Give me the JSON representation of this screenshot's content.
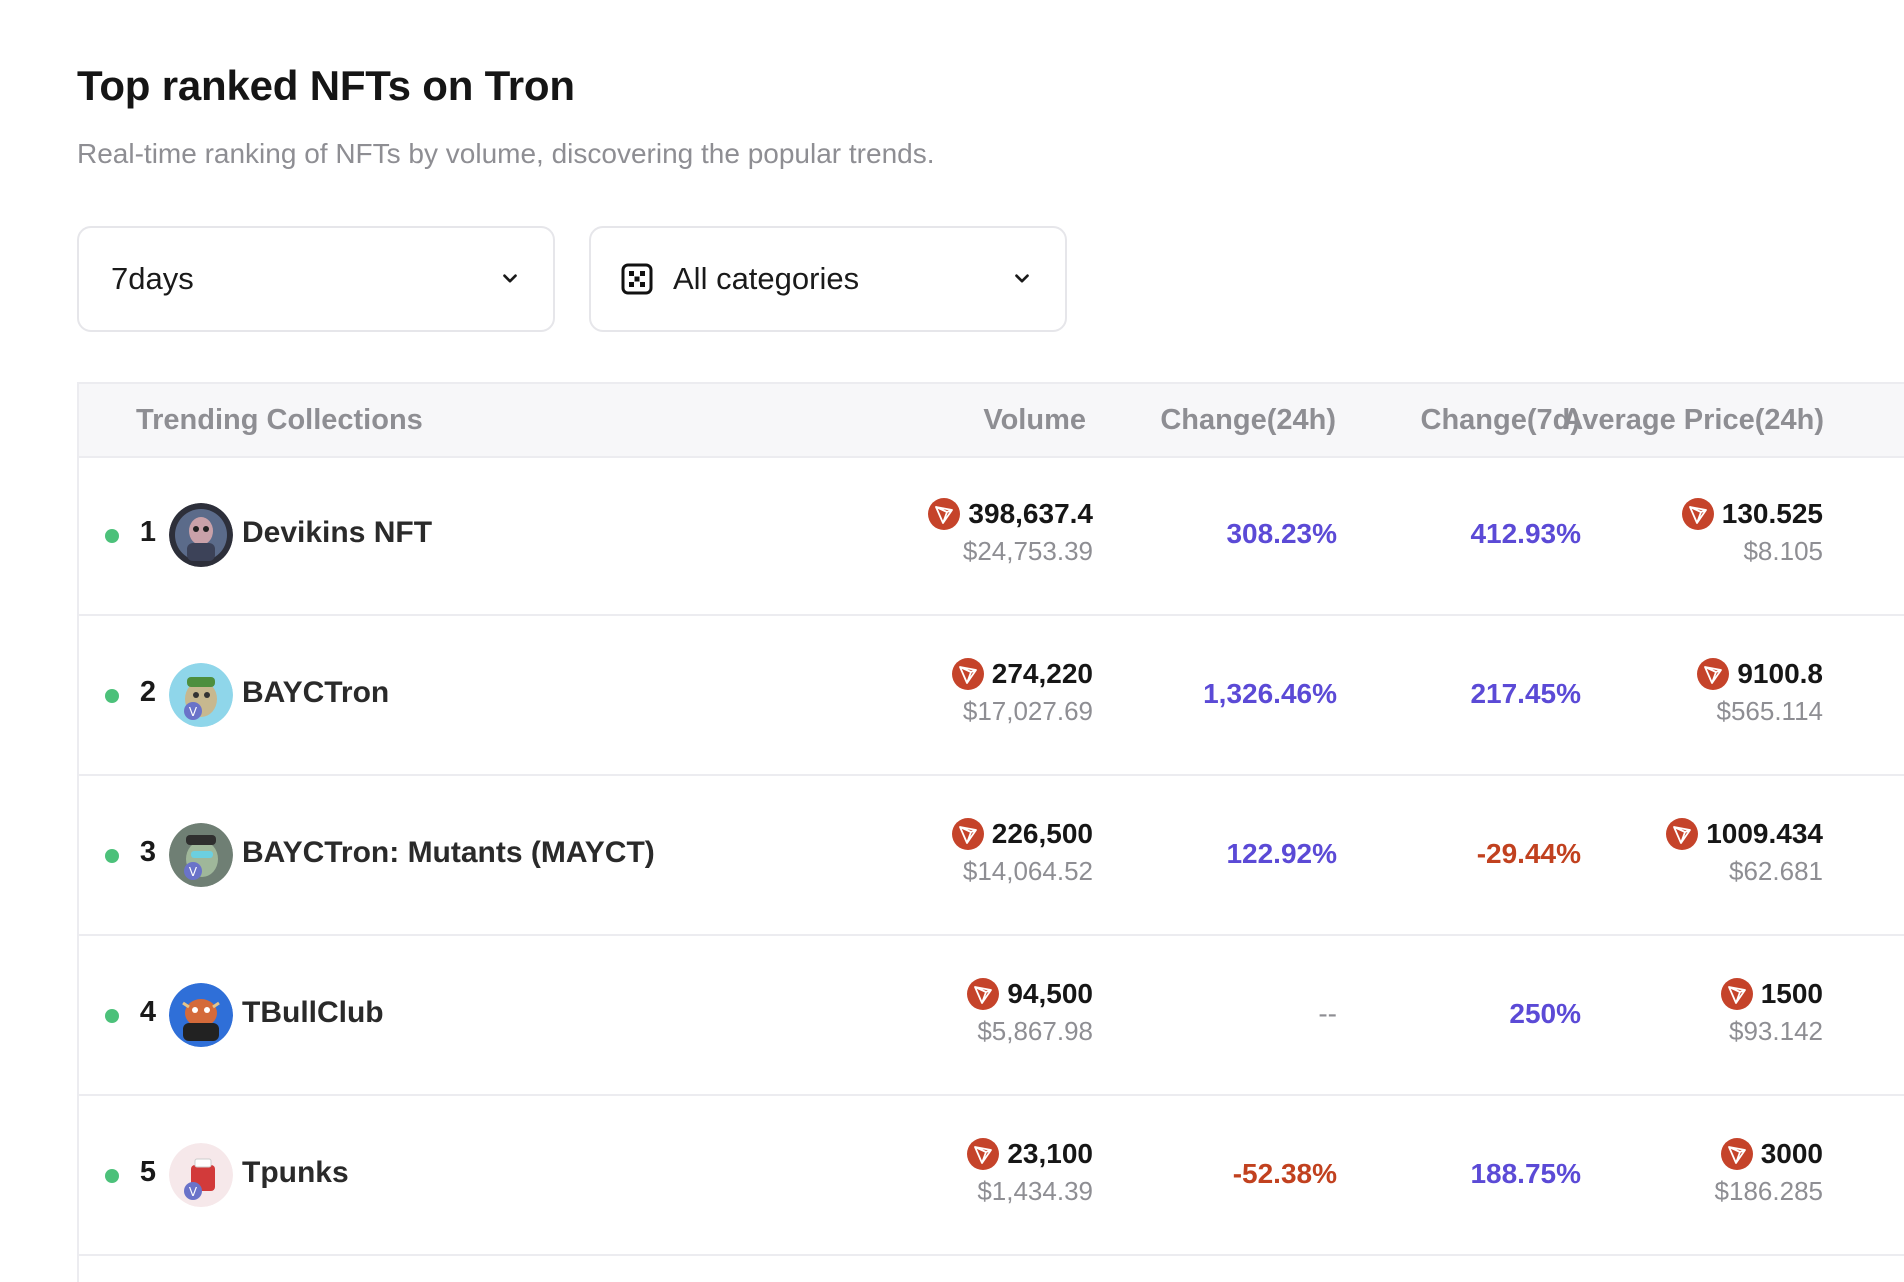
{
  "header": {
    "title": "Top ranked NFTs on Tron",
    "subtitle": "Real-time ranking of NFTs by volume, discovering the popular trends."
  },
  "filters": {
    "period": "7days",
    "category": "All categories",
    "period_icon": "chevron-down-icon",
    "category_icon": "categories-icon"
  },
  "table": {
    "columns": {
      "collections": "Trending Collections",
      "volume": "Volume",
      "change_24h": "Change(24h)",
      "change_7d": "Change(7d)",
      "avg_price": "Average Price(24h)"
    },
    "rows": [
      {
        "rank": "1",
        "name": "Devikins NFT",
        "volume": "398,637.4",
        "volume_usd": "$24,753.39",
        "change_24h": "308.23%",
        "change_7d": "412.93%",
        "avg_price": "130.525",
        "avg_price_usd": "$8.105"
      },
      {
        "rank": "2",
        "name": "BAYCTron",
        "volume": "274,220",
        "volume_usd": "$17,027.69",
        "change_24h": "1,326.46%",
        "change_7d": "217.45%",
        "avg_price": "9100.8",
        "avg_price_usd": "$565.114"
      },
      {
        "rank": "3",
        "name": "BAYCTron: Mutants (MAYCT)",
        "volume": "226,500",
        "volume_usd": "$14,064.52",
        "change_24h": "122.92%",
        "change_7d": "-29.44%",
        "avg_price": "1009.434",
        "avg_price_usd": "$62.681"
      },
      {
        "rank": "4",
        "name": "TBullClub",
        "volume": "94,500",
        "volume_usd": "$5,867.98",
        "change_24h": "--",
        "change_7d": "250%",
        "avg_price": "1500",
        "avg_price_usd": "$93.142"
      },
      {
        "rank": "5",
        "name": "Tpunks",
        "volume": "23,100",
        "volume_usd": "$1,434.39",
        "change_24h": "-52.38%",
        "change_7d": "188.75%",
        "avg_price": "3000",
        "avg_price_usd": "$186.285"
      }
    ]
  },
  "colors": {
    "positive": "#5b4ad6",
    "negative": "#c1411f",
    "online_dot": "#4cc17a",
    "trx_badge": "#c5432a"
  }
}
